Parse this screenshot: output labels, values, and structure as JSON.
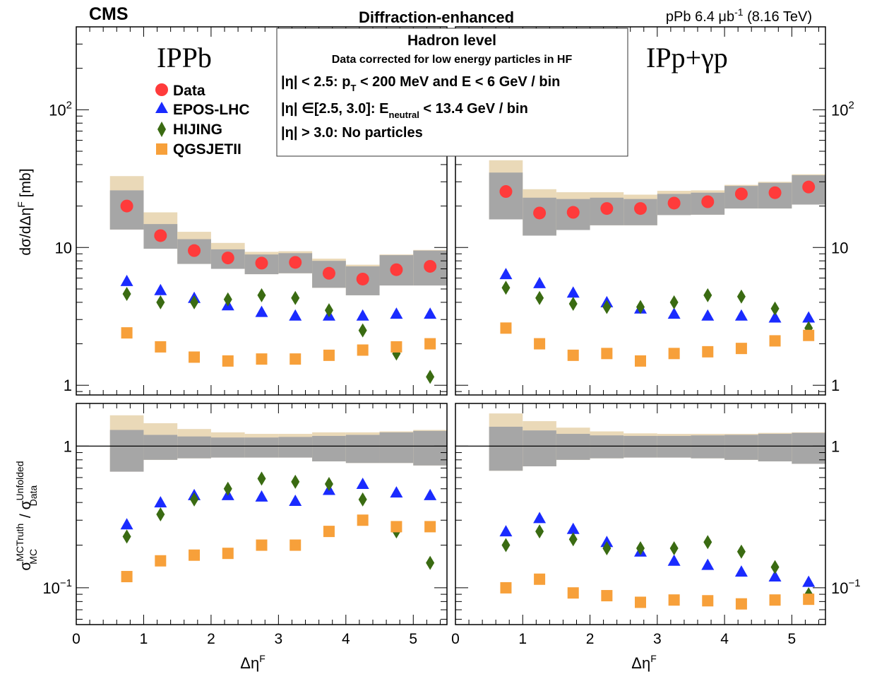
{
  "header": {
    "experiment": "CMS",
    "selection": "Diffraction-enhanced",
    "lumi_main": "pPb 6.4 μb",
    "lumi_sup": "-1",
    "lumi_energy": " (8.16 TeV)"
  },
  "box": {
    "title": "Hadron level",
    "subtitle": "Data corrected for low energy particles in HF",
    "line1": {
      "pre": "|η| < 2.5:  p",
      "sub": "T",
      "post": " < 200 MeV  and  E < 6 GeV / bin"
    },
    "line2": {
      "pre": "|η|  ∈[2.5, 3.0]:  E",
      "sub": "neutral",
      "post": " < 13.4 GeV / bin"
    },
    "line3": "|η| > 3.0:  No particles"
  },
  "panel_labels": {
    "left": "IPPb",
    "right": "IPp+γp"
  },
  "legend": [
    {
      "label": "Data",
      "marker": "circle",
      "color": "#ff3b3b"
    },
    {
      "label": "EPOS-LHC",
      "marker": "triangle",
      "color": "#1a2bff"
    },
    {
      "label": "HIJING",
      "marker": "diamond",
      "color": "#3a6b12"
    },
    {
      "label": "QGSJETII",
      "marker": "square",
      "color": "#f7a03a"
    }
  ],
  "colors": {
    "total_band": "#ead9b8",
    "stat_band": "#a6a6a6",
    "frame": "#000000"
  },
  "axes": {
    "xlabel_main": "Δη",
    "xlabel_sup": "F",
    "ylabel_top": "dσ/dΔη",
    "ylabel_top_sup": "F",
    "ylabel_top_unit": " [mb]",
    "ylabel_bottom": {
      "sigma": "σ",
      "sup1": "MCTruth",
      "sub1": "MC",
      "slash": " / σ",
      "sup2": "Unfolded",
      "sub2": "Data"
    },
    "xticks": [
      "0",
      "1",
      "2",
      "3",
      "4",
      "5"
    ],
    "top_yticks": [
      {
        "label": "10",
        "sup": "2"
      },
      {
        "label": "10",
        "sup": ""
      },
      {
        "label": "1",
        "sup": ""
      }
    ],
    "bottom_yticks": [
      {
        "label": "1",
        "sup": ""
      },
      {
        "label": "10",
        "sup": "−1"
      }
    ]
  },
  "chart_data": {
    "type": "scatter",
    "x_range": [
      0,
      5.5
    ],
    "top_ylim": [
      0.85,
      400
    ],
    "top_yscale": "log",
    "bottom_ylim": [
      0.055,
      2.0
    ],
    "bottom_yscale": "log",
    "bins": [
      [
        0.5,
        1.0
      ],
      [
        1.0,
        1.5
      ],
      [
        1.5,
        2.0
      ],
      [
        2.0,
        2.5
      ],
      [
        2.5,
        3.0
      ],
      [
        3.0,
        3.5
      ],
      [
        3.5,
        4.0
      ],
      [
        4.0,
        4.5
      ],
      [
        4.5,
        5.0
      ],
      [
        5.0,
        5.5
      ]
    ],
    "x": [
      0.75,
      1.25,
      1.75,
      2.25,
      2.75,
      3.25,
      3.75,
      4.25,
      4.75,
      5.25
    ],
    "panels": [
      {
        "name": "IPPb",
        "cross_section": {
          "data": [
            20.0,
            12.2,
            9.5,
            8.4,
            7.7,
            7.8,
            6.5,
            5.9,
            6.9,
            7.3
          ],
          "total_band": [
            [
              13.5,
              33.0
            ],
            [
              9.8,
              18.0
            ],
            [
              7.6,
              13.0
            ],
            [
              7.0,
              10.8
            ],
            [
              6.4,
              9.3
            ],
            [
              6.5,
              9.4
            ],
            [
              5.1,
              8.3
            ],
            [
              4.5,
              7.5
            ],
            [
              5.3,
              8.9
            ],
            [
              5.3,
              9.6
            ]
          ],
          "stat_band": [
            [
              13.5,
              26.0
            ],
            [
              9.8,
              14.8
            ],
            [
              7.6,
              11.5
            ],
            [
              7.0,
              9.7
            ],
            [
              6.4,
              8.9
            ],
            [
              6.5,
              9.1
            ],
            [
              5.1,
              8.0
            ],
            [
              4.5,
              7.3
            ],
            [
              5.3,
              8.8
            ],
            [
              5.3,
              9.5
            ]
          ],
          "EPOS-LHC": [
            5.7,
            4.9,
            4.3,
            3.8,
            3.4,
            3.2,
            3.2,
            3.2,
            3.3,
            3.3
          ],
          "HIJING": [
            4.6,
            4.0,
            4.0,
            4.2,
            4.5,
            4.3,
            3.5,
            2.5,
            1.7,
            1.15
          ],
          "QGSJETII": [
            2.4,
            1.9,
            1.6,
            1.5,
            1.55,
            1.55,
            1.65,
            1.8,
            1.9,
            2.0
          ]
        },
        "ratio": {
          "total_band": [
            [
              0.66,
              1.65
            ],
            [
              0.8,
              1.45
            ],
            [
              0.82,
              1.32
            ],
            [
              0.83,
              1.25
            ],
            [
              0.83,
              1.22
            ],
            [
              0.83,
              1.22
            ],
            [
              0.78,
              1.25
            ],
            [
              0.76,
              1.25
            ],
            [
              0.76,
              1.27
            ],
            [
              0.73,
              1.3
            ]
          ],
          "stat_band": [
            [
              0.66,
              1.3
            ],
            [
              0.8,
              1.2
            ],
            [
              0.82,
              1.17
            ],
            [
              0.83,
              1.15
            ],
            [
              0.83,
              1.15
            ],
            [
              0.83,
              1.16
            ],
            [
              0.78,
              1.18
            ],
            [
              0.76,
              1.2
            ],
            [
              0.76,
              1.25
            ],
            [
              0.73,
              1.28
            ]
          ],
          "EPOS-LHC": [
            0.28,
            0.4,
            0.45,
            0.45,
            0.44,
            0.41,
            0.49,
            0.54,
            0.47,
            0.45
          ],
          "HIJING": [
            0.23,
            0.33,
            0.42,
            0.5,
            0.59,
            0.56,
            0.54,
            0.42,
            0.25,
            0.15
          ],
          "QGSJETII": [
            0.12,
            0.155,
            0.17,
            0.175,
            0.2,
            0.2,
            0.25,
            0.3,
            0.27,
            0.27
          ]
        }
      },
      {
        "name": "IPp+γp",
        "cross_section": {
          "data": [
            25.5,
            17.8,
            18.0,
            19.2,
            19.2,
            21.0,
            21.5,
            24.5,
            25.0,
            27.5
          ],
          "total_band": [
            [
              16.0,
              43.0
            ],
            [
              12.2,
              26.5
            ],
            [
              13.4,
              25.2
            ],
            [
              14.5,
              25.2
            ],
            [
              14.5,
              24.2
            ],
            [
              17.2,
              25.8
            ],
            [
              17.3,
              26.0
            ],
            [
              19.2,
              28.5
            ],
            [
              19.2,
              30.0
            ],
            [
              20.5,
              34.0
            ]
          ],
          "stat_band": [
            [
              16.0,
              35.0
            ],
            [
              12.2,
              23.0
            ],
            [
              13.4,
              22.5
            ],
            [
              14.5,
              23.0
            ],
            [
              14.5,
              22.5
            ],
            [
              17.2,
              24.5
            ],
            [
              17.3,
              25.0
            ],
            [
              19.2,
              28.0
            ],
            [
              19.2,
              29.5
            ],
            [
              20.5,
              33.5
            ]
          ],
          "EPOS-LHC": [
            6.4,
            5.5,
            4.7,
            4.0,
            3.6,
            3.3,
            3.2,
            3.2,
            3.1,
            3.1
          ],
          "HIJING": [
            5.1,
            4.3,
            3.9,
            3.7,
            3.7,
            4.0,
            4.5,
            4.4,
            3.6,
            2.6
          ],
          "QGSJETII": [
            2.6,
            2.0,
            1.65,
            1.7,
            1.5,
            1.7,
            1.75,
            1.85,
            2.1,
            2.3
          ]
        },
        "ratio": {
          "total_band": [
            [
              0.67,
              1.7
            ],
            [
              0.72,
              1.5
            ],
            [
              0.8,
              1.35
            ],
            [
              0.82,
              1.27
            ],
            [
              0.83,
              1.23
            ],
            [
              0.83,
              1.22
            ],
            [
              0.82,
              1.22
            ],
            [
              0.8,
              1.22
            ],
            [
              0.78,
              1.24
            ],
            [
              0.75,
              1.25
            ]
          ],
          "stat_band": [
            [
              0.67,
              1.37
            ],
            [
              0.72,
              1.29
            ],
            [
              0.8,
              1.22
            ],
            [
              0.82,
              1.19
            ],
            [
              0.83,
              1.18
            ],
            [
              0.83,
              1.18
            ],
            [
              0.82,
              1.19
            ],
            [
              0.8,
              1.2
            ],
            [
              0.78,
              1.22
            ],
            [
              0.75,
              1.24
            ]
          ],
          "EPOS-LHC": [
            0.25,
            0.31,
            0.26,
            0.21,
            0.18,
            0.155,
            0.145,
            0.13,
            0.12,
            0.11
          ],
          "HIJING": [
            0.2,
            0.25,
            0.22,
            0.19,
            0.19,
            0.19,
            0.21,
            0.18,
            0.14,
            0.09
          ],
          "QGSJETII": [
            0.1,
            0.115,
            0.092,
            0.088,
            0.079,
            0.082,
            0.081,
            0.077,
            0.082,
            0.083
          ]
        }
      }
    ]
  }
}
